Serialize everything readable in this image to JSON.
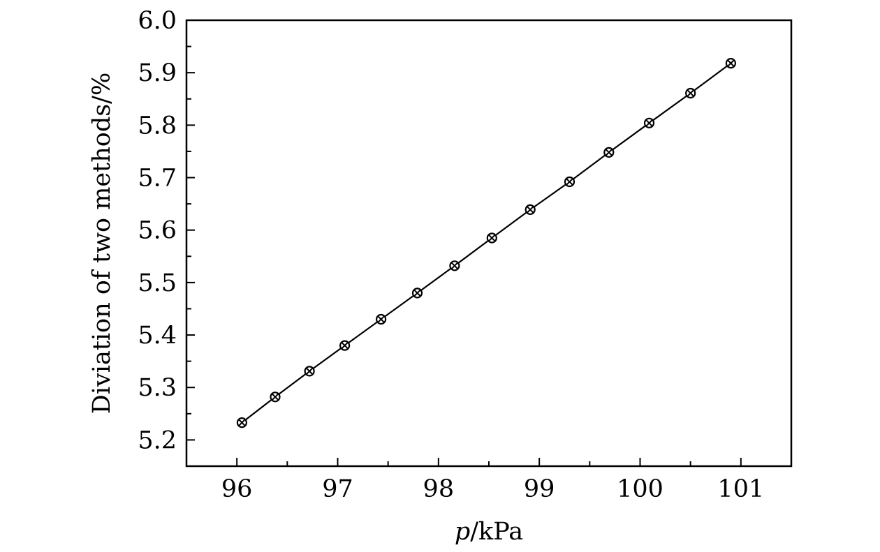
{
  "chart_data": {
    "type": "line",
    "xlabel": {
      "var": "p",
      "unit": "/kPa"
    },
    "ylabel": "Diviation of two methods/%",
    "xlim": [
      95.5,
      101.5
    ],
    "ylim": [
      5.15,
      6.0
    ],
    "x_ticks": [
      "96",
      "97",
      "98",
      "99",
      "100",
      "101"
    ],
    "y_ticks": [
      "5.2",
      "5.3",
      "5.4",
      "5.5",
      "5.6",
      "5.7",
      "5.8",
      "5.9",
      "6.0"
    ],
    "grid": false,
    "legend": "none",
    "marker": "circle-x",
    "series": [
      {
        "x": [
          96.05,
          96.38,
          96.72,
          97.07,
          97.43,
          97.79,
          98.16,
          98.53,
          98.91,
          99.3,
          99.69,
          100.09,
          100.5,
          100.9
        ],
        "y": [
          5.233,
          5.282,
          5.331,
          5.38,
          5.43,
          5.48,
          5.532,
          5.585,
          5.639,
          5.692,
          5.748,
          5.804,
          5.861,
          5.918
        ]
      }
    ]
  }
}
